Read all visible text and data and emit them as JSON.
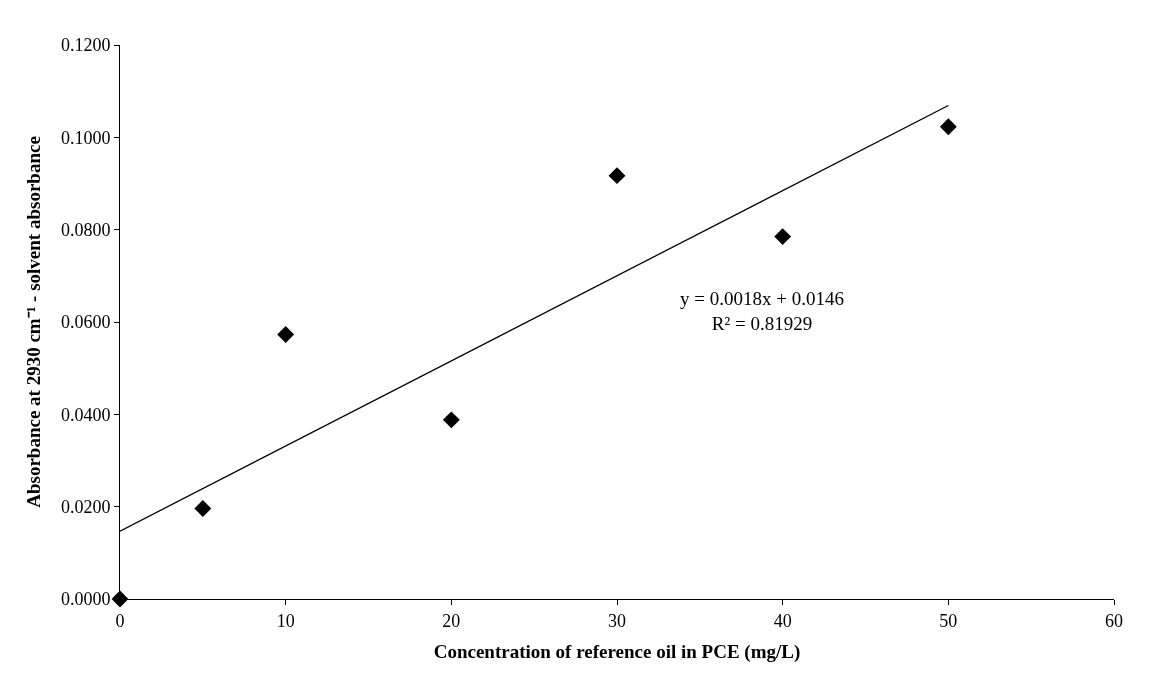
{
  "chart_data": {
    "type": "scatter",
    "xlabel": "Concentration of reference oil in PCE (mg/L)",
    "ylabel": "Absorbance at 2930 cm⁻¹ - solvent absorbance",
    "x": [
      0,
      5,
      10,
      20,
      30,
      40,
      50
    ],
    "series": [
      {
        "color": "#000000",
        "marker": "diamond",
        "values": [
          0.0,
          0.0196,
          0.0573,
          0.0388,
          0.0917,
          0.0785,
          0.1023
        ]
      },
      {
        "type": "line",
        "color": "#000000",
        "marker": "none",
        "x": [
          0,
          50
        ],
        "values": [
          0.0147,
          0.1069
        ]
      }
    ],
    "annotations": [
      "y = 0.0018x + 0.0146\nR² = 0.81929"
    ],
    "xlim": [
      0,
      60
    ],
    "xticks": [
      0,
      10,
      20,
      30,
      40,
      50,
      60
    ],
    "ylim": [
      0,
      0.12
    ],
    "yticks": [
      {
        "value": 0,
        "label": "0.0000"
      },
      {
        "value": 0.02,
        "label": "0.0200"
      },
      {
        "value": 0.04,
        "label": "0.0400"
      },
      {
        "value": 0.06,
        "label": "0.0600"
      },
      {
        "value": 0.08,
        "label": "0.0800"
      },
      {
        "value": 0.1,
        "label": "0.1000"
      },
      {
        "value": 0.12,
        "label": "0.1200"
      }
    ]
  }
}
